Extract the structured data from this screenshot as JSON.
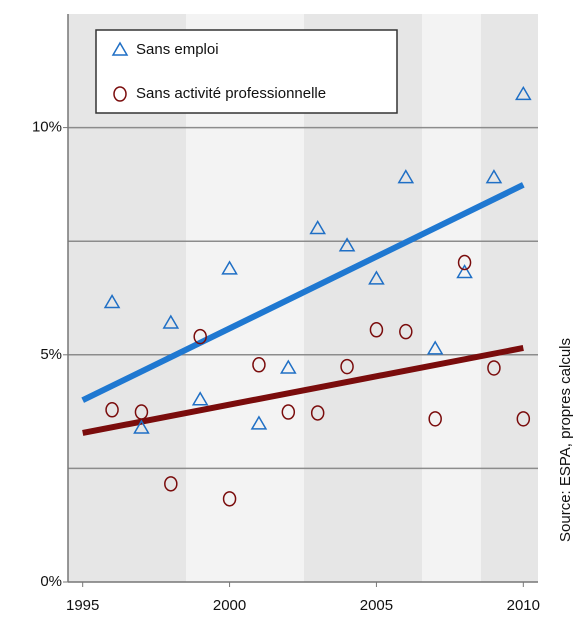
{
  "chart_data": {
    "type": "scatter",
    "source": "Source: ESPA, propres calculs",
    "x": [
      1996,
      1997,
      1998,
      1999,
      2000,
      2001,
      2002,
      2003,
      2004,
      2005,
      2006,
      2007,
      2008,
      2009,
      2010
    ],
    "series": [
      {
        "name": "Sans emploi",
        "color": "#1f6fc5",
        "marker": "triangle",
        "values": [
          6.15,
          3.39,
          5.7,
          4.01,
          6.89,
          3.48,
          4.71,
          7.78,
          7.4,
          6.67,
          8.9,
          5.13,
          6.81,
          8.9,
          10.73
        ]
      },
      {
        "name": "Sans activité professionnelle",
        "color": "#7a0c0c",
        "marker": "circle",
        "values": [
          3.79,
          3.74,
          2.16,
          5.4,
          1.83,
          4.78,
          3.74,
          3.72,
          4.74,
          5.55,
          5.51,
          3.59,
          7.03,
          4.71,
          3.59
        ]
      }
    ],
    "trendlines": [
      {
        "color": "#1f78d1",
        "x": [
          1995,
          2010
        ],
        "values": [
          4.0,
          8.74
        ]
      },
      {
        "color": "#7a0c0c",
        "x": [
          1995,
          2010
        ],
        "values": [
          3.28,
          5.15
        ]
      }
    ],
    "xlim": [
      1994.5,
      2010.5
    ],
    "xticks": [
      1995,
      2000,
      2005,
      2010
    ],
    "ylim": [
      0,
      12.5
    ],
    "yticks": [
      {
        "value": 0,
        "label": "0%"
      },
      {
        "value": 5,
        "label": "5%"
      },
      {
        "value": 10,
        "label": "10%"
      }
    ],
    "ygrid": [
      2.5,
      5,
      7.5,
      10
    ],
    "grid": true,
    "legend": "top-left"
  }
}
